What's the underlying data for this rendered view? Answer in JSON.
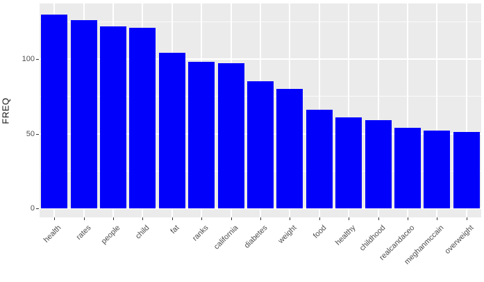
{
  "chart_data": {
    "type": "bar",
    "title": "",
    "xlabel": "",
    "ylabel": "FREQ",
    "categories": [
      "health",
      "rates",
      "people",
      "child",
      "fat",
      "ranks",
      "california",
      "diabetes",
      "weight",
      "food",
      "healthy",
      "childhood",
      "realcandaceo",
      "meghanmccain",
      "overweight"
    ],
    "values": [
      130,
      126,
      122,
      121,
      104,
      98,
      97,
      85,
      80,
      66,
      61,
      59,
      54,
      52,
      51
    ],
    "yticks_major": [
      0,
      50,
      100
    ],
    "yticks_minor": [
      25,
      75,
      125
    ],
    "ylim": [
      -6.5,
      137
    ],
    "legend_position": "none",
    "grid": "on",
    "bar_color": "#0000FB",
    "panel_background": "#EBEBEB",
    "grid_color": "#FFFFFF",
    "axis_text_color": "#4D4D4D",
    "axis_title_color": "#111111"
  }
}
